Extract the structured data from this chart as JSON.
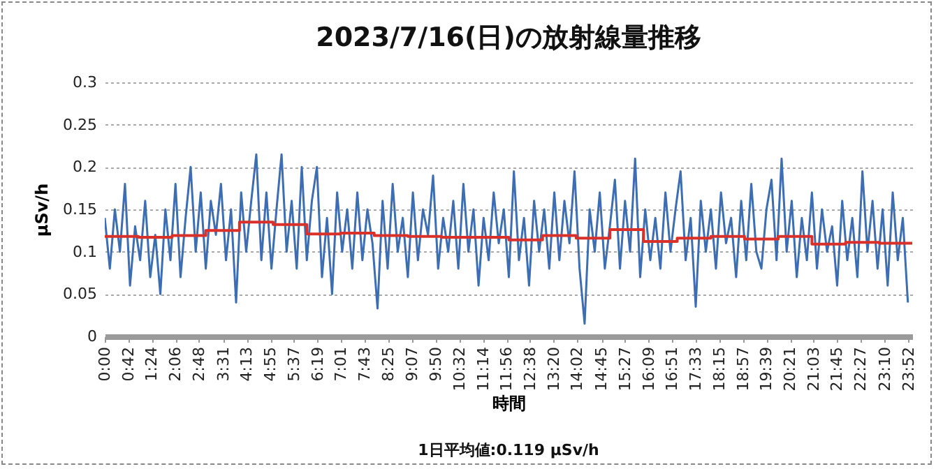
{
  "chart_data": {
    "type": "line",
    "title": "2023/7/16(日)の放射線量推移",
    "xlabel": "時間",
    "ylabel": "µSv/h",
    "annotations": [
      "1日平均値:0.119 µSv/h"
    ],
    "xlim": [
      0,
      23.98
    ],
    "ylim": [
      0,
      0.3
    ],
    "yticks": [
      0,
      0.05,
      0.1,
      0.15,
      0.2,
      0.25,
      0.3
    ],
    "grid": "y",
    "line_style": "solid",
    "xticks": [
      {
        "value": 0,
        "label": "0:00"
      },
      {
        "value": 0.7,
        "label": "0:42"
      },
      {
        "value": 1.4,
        "label": "1:24"
      },
      {
        "value": 2.1,
        "label": "2:06"
      },
      {
        "value": 2.8,
        "label": "2:48"
      },
      {
        "value": 3.517,
        "label": "3:31"
      },
      {
        "value": 4.217,
        "label": "4:13"
      },
      {
        "value": 4.917,
        "label": "4:55"
      },
      {
        "value": 5.617,
        "label": "5:37"
      },
      {
        "value": 6.317,
        "label": "6:19"
      },
      {
        "value": 7.017,
        "label": "7:01"
      },
      {
        "value": 7.717,
        "label": "7:43"
      },
      {
        "value": 8.417,
        "label": "8:25"
      },
      {
        "value": 9.117,
        "label": "9:07"
      },
      {
        "value": 9.833,
        "label": "9:50"
      },
      {
        "value": 10.533,
        "label": "10:32"
      },
      {
        "value": 11.233,
        "label": "11:14"
      },
      {
        "value": 11.933,
        "label": "11:56"
      },
      {
        "value": 12.633,
        "label": "12:38"
      },
      {
        "value": 13.333,
        "label": "13:20"
      },
      {
        "value": 14.033,
        "label": "14:02"
      },
      {
        "value": 14.75,
        "label": "14:45"
      },
      {
        "value": 15.45,
        "label": "15:27"
      },
      {
        "value": 16.15,
        "label": "16:09"
      },
      {
        "value": 16.85,
        "label": "16:51"
      },
      {
        "value": 17.55,
        "label": "17:33"
      },
      {
        "value": 18.25,
        "label": "18:15"
      },
      {
        "value": 18.95,
        "label": "18:57"
      },
      {
        "value": 19.65,
        "label": "19:39"
      },
      {
        "value": 20.35,
        "label": "20:21"
      },
      {
        "value": 21.05,
        "label": "21:03"
      },
      {
        "value": 21.75,
        "label": "21:45"
      },
      {
        "value": 22.45,
        "label": "22:27"
      },
      {
        "value": 23.167,
        "label": "23:10"
      },
      {
        "value": 23.867,
        "label": "23:52"
      }
    ],
    "series": [
      {
        "color": "#3d6db2",
        "x": [
          0,
          0.15,
          0.3,
          0.45,
          0.6,
          0.75,
          0.9,
          1.05,
          1.2,
          1.35,
          1.5,
          1.65,
          1.8,
          1.95,
          2.1,
          2.25,
          2.4,
          2.55,
          2.7,
          2.85,
          3,
          3.15,
          3.3,
          3.45,
          3.6,
          3.75,
          3.9,
          4.05,
          4.2,
          4.35,
          4.5,
          4.65,
          4.8,
          4.95,
          5.1,
          5.25,
          5.4,
          5.55,
          5.7,
          5.85,
          6,
          6.15,
          6.3,
          6.45,
          6.6,
          6.75,
          6.9,
          7.05,
          7.2,
          7.35,
          7.5,
          7.65,
          7.8,
          7.95,
          8.1,
          8.25,
          8.4,
          8.55,
          8.7,
          8.85,
          9,
          9.15,
          9.3,
          9.45,
          9.6,
          9.75,
          9.9,
          10.05,
          10.2,
          10.35,
          10.5,
          10.65,
          10.8,
          10.95,
          11.1,
          11.25,
          11.4,
          11.55,
          11.7,
          11.85,
          12,
          12.15,
          12.3,
          12.45,
          12.6,
          12.75,
          12.9,
          13.05,
          13.2,
          13.35,
          13.5,
          13.65,
          13.8,
          13.95,
          14.1,
          14.25,
          14.4,
          14.55,
          14.7,
          14.85,
          15,
          15.15,
          15.3,
          15.45,
          15.6,
          15.75,
          15.9,
          16.05,
          16.2,
          16.35,
          16.5,
          16.65,
          16.8,
          16.95,
          17.1,
          17.25,
          17.4,
          17.55,
          17.7,
          17.85,
          18,
          18.15,
          18.3,
          18.45,
          18.6,
          18.75,
          18.9,
          19.05,
          19.2,
          19.35,
          19.5,
          19.65,
          19.8,
          19.95,
          20.1,
          20.25,
          20.4,
          20.55,
          20.7,
          20.85,
          21,
          21.15,
          21.3,
          21.45,
          21.6,
          21.75,
          21.9,
          22.05,
          22.2,
          22.35,
          22.5,
          22.65,
          22.8,
          22.95,
          23.1,
          23.25,
          23.4,
          23.55,
          23.7,
          23.85
        ],
        "values": [
          0.14,
          0.08,
          0.15,
          0.1,
          0.18,
          0.06,
          0.13,
          0.09,
          0.16,
          0.07,
          0.12,
          0.05,
          0.15,
          0.09,
          0.18,
          0.07,
          0.14,
          0.2,
          0.1,
          0.17,
          0.08,
          0.16,
          0.12,
          0.18,
          0.09,
          0.15,
          0.04,
          0.17,
          0.1,
          0.16,
          0.215,
          0.09,
          0.17,
          0.08,
          0.15,
          0.215,
          0.1,
          0.16,
          0.08,
          0.2,
          0.09,
          0.16,
          0.2,
          0.07,
          0.14,
          0.05,
          0.17,
          0.1,
          0.15,
          0.08,
          0.17,
          0.09,
          0.15,
          0.11,
          0.033,
          0.16,
          0.08,
          0.18,
          0.1,
          0.14,
          0.07,
          0.17,
          0.09,
          0.15,
          0.12,
          0.19,
          0.08,
          0.14,
          0.1,
          0.16,
          0.08,
          0.18,
          0.1,
          0.15,
          0.06,
          0.14,
          0.09,
          0.17,
          0.11,
          0.15,
          0.07,
          0.195,
          0.09,
          0.14,
          0.06,
          0.16,
          0.1,
          0.15,
          0.08,
          0.17,
          0.09,
          0.16,
          0.11,
          0.195,
          0.08,
          0.015,
          0.15,
          0.1,
          0.17,
          0.08,
          0.13,
          0.185,
          0.08,
          0.16,
          0.1,
          0.21,
          0.07,
          0.15,
          0.09,
          0.14,
          0.08,
          0.17,
          0.1,
          0.15,
          0.195,
          0.09,
          0.14,
          0.035,
          0.16,
          0.1,
          0.15,
          0.08,
          0.17,
          0.11,
          0.14,
          0.07,
          0.16,
          0.09,
          0.18,
          0.1,
          0.08,
          0.15,
          0.185,
          0.09,
          0.21,
          0.1,
          0.16,
          0.07,
          0.14,
          0.09,
          0.17,
          0.08,
          0.15,
          0.1,
          0.13,
          0.06,
          0.16,
          0.09,
          0.14,
          0.07,
          0.195,
          0.1,
          0.16,
          0.08,
          0.15,
          0.06,
          0.17,
          0.09,
          0.14,
          0.04
        ]
      },
      {
        "type": "step",
        "color": "#d9302a",
        "x": [
          0,
          1,
          2,
          3,
          4,
          5,
          6,
          7,
          8,
          9,
          10,
          11,
          12,
          13,
          14,
          15,
          16,
          17,
          18,
          19,
          20,
          21,
          22,
          23,
          23.98
        ],
        "values": [
          0.118,
          0.117,
          0.119,
          0.125,
          0.135,
          0.132,
          0.121,
          0.122,
          0.119,
          0.118,
          0.117,
          0.117,
          0.114,
          0.119,
          0.116,
          0.126,
          0.112,
          0.116,
          0.118,
          0.115,
          0.118,
          0.109,
          0.111,
          0.11,
          0.11
        ]
      }
    ]
  }
}
